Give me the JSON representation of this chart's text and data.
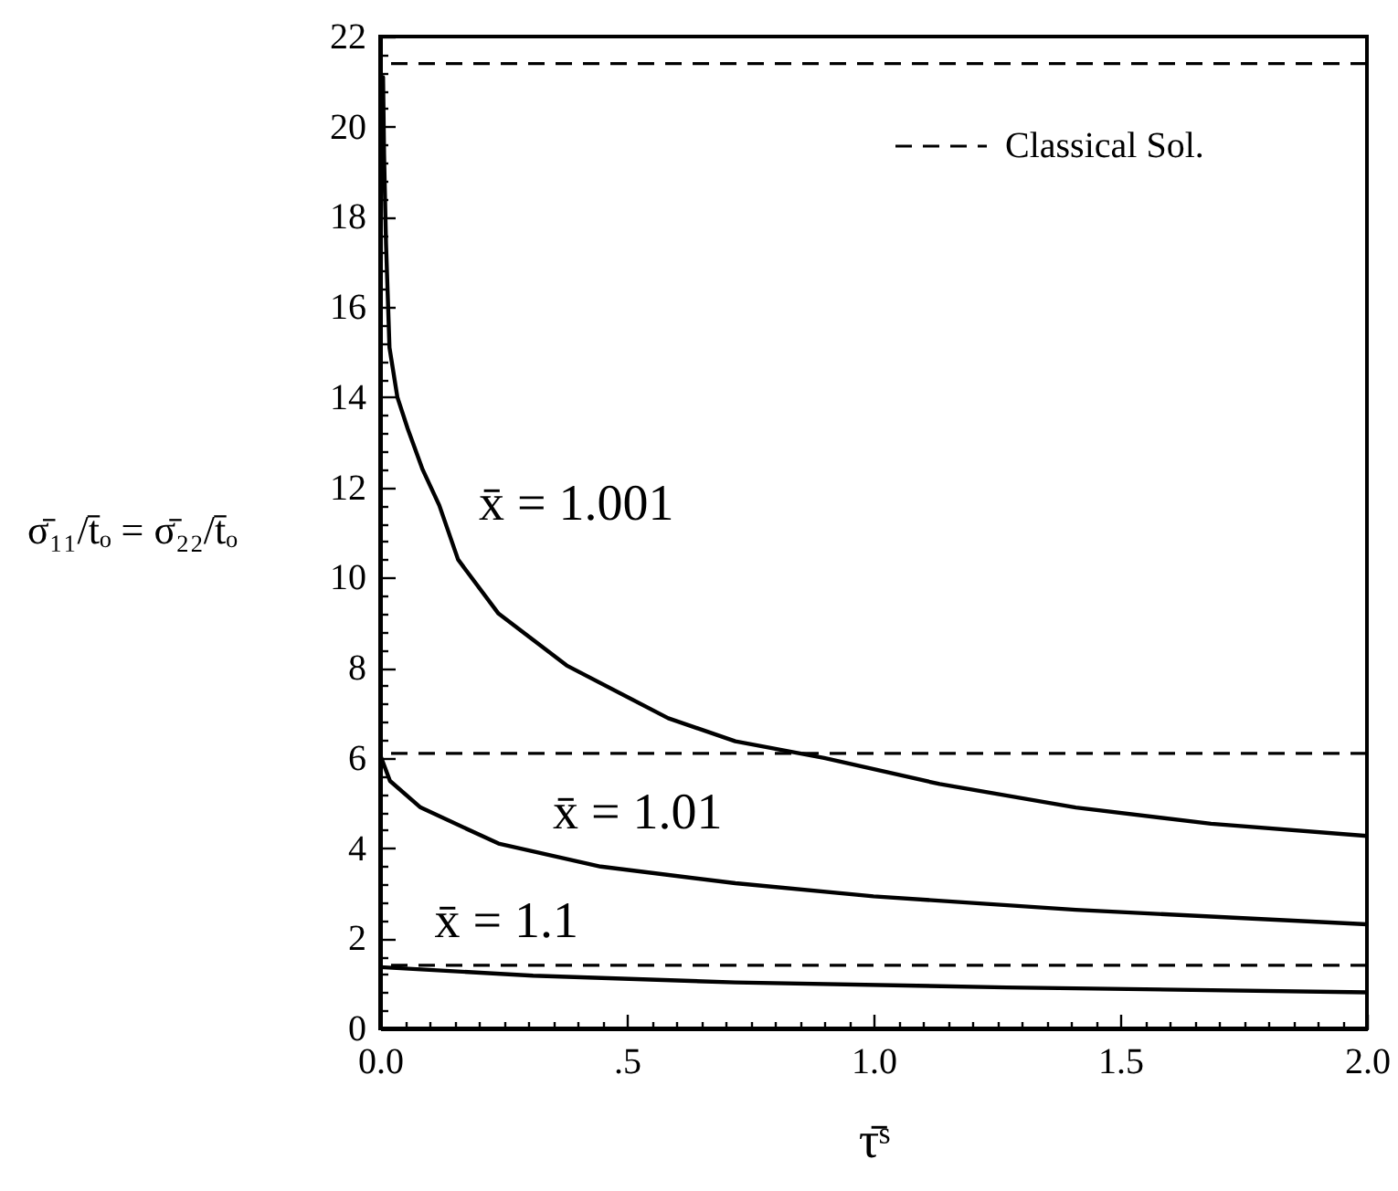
{
  "chart_data": {
    "type": "line",
    "xlabel": "τ̄ˢ",
    "ylabel": "σ̄₁₁/t̄ₒ = σ̄₂₂/t̄ₒ",
    "series": [
      {
        "name": "x̄ = 1.001",
        "color": "#000000",
        "x": [
          0.006,
          0.008,
          0.012,
          0.019,
          0.035,
          0.056,
          0.086,
          0.12,
          0.158,
          0.24,
          0.378,
          0.584,
          0.72,
          0.9,
          1.134,
          1.41,
          1.684,
          2.0
        ],
        "values": [
          21.1,
          19.4,
          17.4,
          15.1,
          14.0,
          13.3,
          12.4,
          11.6,
          10.4,
          9.2,
          8.05,
          6.88,
          6.37,
          6.0,
          5.42,
          4.9,
          4.54,
          4.27
        ]
      },
      {
        "name": "x̄ = 1.01",
        "color": "#000000",
        "x": [
          0.0,
          0.02,
          0.082,
          0.24,
          0.447,
          0.72,
          1.0,
          1.41,
          2.0
        ],
        "values": [
          6.07,
          5.49,
          4.9,
          4.1,
          3.59,
          3.22,
          2.93,
          2.63,
          2.31
        ]
      },
      {
        "name": "x̄ = 1.1",
        "color": "#000000",
        "x": [
          0.0,
          0.31,
          0.72,
          1.27,
          2.0
        ],
        "values": [
          1.36,
          1.17,
          1.02,
          0.91,
          0.8
        ]
      }
    ],
    "ref_lines": [
      {
        "axis": "y",
        "value": 21.4,
        "label": "Classical Sol.",
        "line_style": "dashed",
        "color": "#000000"
      },
      {
        "axis": "y",
        "value": 6.1,
        "line_style": "dashed",
        "color": "#000000"
      },
      {
        "axis": "y",
        "value": 1.4,
        "line_style": "dashed",
        "color": "#000000"
      }
    ],
    "legend": "top right",
    "line_style": "solid",
    "marker": "none",
    "grid": false,
    "xlim": [
      0,
      2
    ],
    "ylim": [
      0,
      22
    ],
    "xticks": [
      {
        "value": 0,
        "label": "0.0"
      },
      {
        "value": 0.05,
        "label": null
      },
      {
        "value": 0.1,
        "label": null
      },
      {
        "value": 0.15,
        "label": null
      },
      {
        "value": 0.2,
        "label": null
      },
      {
        "value": 0.25,
        "label": null
      },
      {
        "value": 0.3,
        "label": null
      },
      {
        "value": 0.35,
        "label": null
      },
      {
        "value": 0.4,
        "label": null
      },
      {
        "value": 0.45,
        "label": null
      },
      {
        "value": 0.5,
        "label": ".5"
      },
      {
        "value": 0.55,
        "label": null
      },
      {
        "value": 0.6,
        "label": null
      },
      {
        "value": 0.65,
        "label": null
      },
      {
        "value": 0.7,
        "label": null
      },
      {
        "value": 0.75,
        "label": null
      },
      {
        "value": 0.8,
        "label": null
      },
      {
        "value": 0.85,
        "label": null
      },
      {
        "value": 0.9,
        "label": null
      },
      {
        "value": 0.95,
        "label": null
      },
      {
        "value": 1,
        "label": "1.0"
      },
      {
        "value": 1.05,
        "label": null
      },
      {
        "value": 1.1,
        "label": null
      },
      {
        "value": 1.15,
        "label": null
      },
      {
        "value": 1.2,
        "label": null
      },
      {
        "value": 1.25,
        "label": null
      },
      {
        "value": 1.3,
        "label": null
      },
      {
        "value": 1.35,
        "label": null
      },
      {
        "value": 1.4,
        "label": null
      },
      {
        "value": 1.45,
        "label": null
      },
      {
        "value": 1.5,
        "label": "1.5"
      },
      {
        "value": 1.55,
        "label": null
      },
      {
        "value": 1.6,
        "label": null
      },
      {
        "value": 1.65,
        "label": null
      },
      {
        "value": 1.7,
        "label": null
      },
      {
        "value": 1.75,
        "label": null
      },
      {
        "value": 1.8,
        "label": null
      },
      {
        "value": 1.85,
        "label": null
      },
      {
        "value": 1.9,
        "label": null
      },
      {
        "value": 1.95,
        "label": null
      },
      {
        "value": 2,
        "label": "2.0"
      }
    ],
    "yticks": [
      0,
      {
        "value": 0.4,
        "label": null
      },
      {
        "value": 0.8,
        "label": null
      },
      {
        "value": 1.2,
        "label": null
      },
      {
        "value": 1.6,
        "label": null
      },
      2,
      {
        "value": 2.4,
        "label": null
      },
      {
        "value": 2.8,
        "label": null
      },
      {
        "value": 3.2,
        "label": null
      },
      {
        "value": 3.6,
        "label": null
      },
      4,
      {
        "value": 4.4,
        "label": null
      },
      {
        "value": 4.8,
        "label": null
      },
      {
        "value": 5.2,
        "label": null
      },
      {
        "value": 5.6,
        "label": null
      },
      6,
      {
        "value": 6.4,
        "label": null
      },
      {
        "value": 6.8,
        "label": null
      },
      {
        "value": 7.2,
        "label": null
      },
      {
        "value": 7.6,
        "label": null
      },
      8,
      {
        "value": 8.4,
        "label": null
      },
      {
        "value": 8.8,
        "label": null
      },
      {
        "value": 9.2,
        "label": null
      },
      {
        "value": 9.6,
        "label": null
      },
      10,
      {
        "value": 10.4,
        "label": null
      },
      {
        "value": 10.8,
        "label": null
      },
      {
        "value": 11.2,
        "label": null
      },
      {
        "value": 11.6,
        "label": null
      },
      12,
      {
        "value": 12.4,
        "label": null
      },
      {
        "value": 12.8,
        "label": null
      },
      {
        "value": 13.2,
        "label": null
      },
      {
        "value": 13.6,
        "label": null
      },
      14,
      {
        "value": 14.4,
        "label": null
      },
      {
        "value": 14.8,
        "label": null
      },
      {
        "value": 15.2,
        "label": null
      },
      {
        "value": 15.6,
        "label": null
      },
      16,
      {
        "value": 16.4,
        "label": null
      },
      {
        "value": 16.8,
        "label": null
      },
      {
        "value": 17.2,
        "label": null
      },
      {
        "value": 17.6,
        "label": null
      },
      18,
      {
        "value": 18.4,
        "label": null
      },
      {
        "value": 18.8,
        "label": null
      },
      {
        "value": 19.2,
        "label": null
      },
      {
        "value": 19.6,
        "label": null
      },
      20,
      {
        "value": 20.4,
        "label": null
      },
      {
        "value": 20.8,
        "label": null
      },
      {
        "value": 21.2,
        "label": null
      },
      {
        "value": 21.6,
        "label": null
      },
      22
    ]
  }
}
